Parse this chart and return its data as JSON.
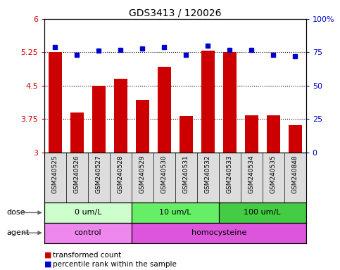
{
  "title": "GDS3413 / 120026",
  "samples": [
    "GSM240525",
    "GSM240526",
    "GSM240527",
    "GSM240528",
    "GSM240529",
    "GSM240530",
    "GSM240531",
    "GSM240532",
    "GSM240533",
    "GSM240534",
    "GSM240535",
    "GSM240848"
  ],
  "transformed_count": [
    5.25,
    3.9,
    4.5,
    4.65,
    4.19,
    4.93,
    3.82,
    5.28,
    5.25,
    3.84,
    3.84,
    3.62
  ],
  "percentile_rank": [
    79,
    73,
    76,
    77,
    78,
    79,
    73,
    80,
    77,
    77,
    73,
    72
  ],
  "ylim_left": [
    3,
    6
  ],
  "ylim_right": [
    0,
    100
  ],
  "yticks_left": [
    3,
    3.75,
    4.5,
    5.25,
    6
  ],
  "yticks_right": [
    0,
    25,
    50,
    75,
    100
  ],
  "ytick_labels_left": [
    "3",
    "3.75",
    "4.5",
    "5.25",
    "6"
  ],
  "ytick_labels_right": [
    "0",
    "25",
    "50",
    "75",
    "100%"
  ],
  "bar_color": "#cc0000",
  "dot_color": "#0000cc",
  "grid_color": "#000000",
  "dose_groups": [
    {
      "label": "0 um/L",
      "start": 0,
      "end": 3,
      "color": "#ccffcc"
    },
    {
      "label": "10 um/L",
      "start": 4,
      "end": 7,
      "color": "#66ee66"
    },
    {
      "label": "100 um/L",
      "start": 8,
      "end": 11,
      "color": "#44cc44"
    }
  ],
  "agent_groups": [
    {
      "label": "control",
      "start": 0,
      "end": 3,
      "color": "#ee88ee"
    },
    {
      "label": "homocysteine",
      "start": 4,
      "end": 11,
      "color": "#dd55dd"
    }
  ],
  "dose_label": "dose",
  "agent_label": "agent",
  "legend_bar_label": "transformed count",
  "legend_dot_label": "percentile rank within the sample",
  "bg_color": "#ffffff",
  "spine_color": "#000000",
  "tick_color_left": "#cc0000",
  "tick_color_right": "#0000cc",
  "label_bg": "#dddddd"
}
